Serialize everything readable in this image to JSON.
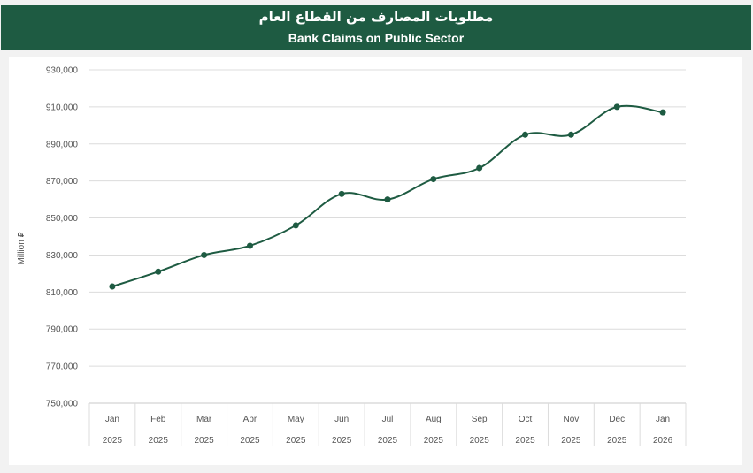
{
  "header": {
    "title_ar": "مطلوبات المصارف من القطاع العام",
    "title_en": "Bank Claims on Public Sector"
  },
  "colors": {
    "header_bg": "#1e5b42",
    "line": "#1e5b42",
    "point": "#1e5b42",
    "grid": "#dcdcdc",
    "background": "#f2f2f2"
  },
  "chart_data": {
    "type": "line",
    "title": "Bank Claims on Public Sector",
    "ylabel": "Million ⃁",
    "ylim": [
      750000,
      930000
    ],
    "yticks": [
      750000,
      770000,
      790000,
      810000,
      830000,
      850000,
      870000,
      890000,
      910000,
      930000
    ],
    "ytick_labels": [
      "750,000",
      "770,000",
      "790,000",
      "810,000",
      "830,000",
      "850,000",
      "870,000",
      "890,000",
      "910,000",
      "930,000"
    ],
    "categories": [
      {
        "month": "Jan",
        "year": "2025"
      },
      {
        "month": "Feb",
        "year": "2025"
      },
      {
        "month": "Mar",
        "year": "2025"
      },
      {
        "month": "Apr",
        "year": "2025"
      },
      {
        "month": "May",
        "year": "2025"
      },
      {
        "month": "Jun",
        "year": "2025"
      },
      {
        "month": "Jul",
        "year": "2025"
      },
      {
        "month": "Aug",
        "year": "2025"
      },
      {
        "month": "Sep",
        "year": "2025"
      },
      {
        "month": "Oct",
        "year": "2025"
      },
      {
        "month": "Nov",
        "year": "2025"
      },
      {
        "month": "Dec",
        "year": "2025"
      },
      {
        "month": "Jan",
        "year": "2026"
      }
    ],
    "values": [
      813000,
      821000,
      830000,
      835000,
      846000,
      863000,
      860000,
      871000,
      877000,
      895000,
      895000,
      910000,
      907000
    ],
    "grid": true,
    "legend": "none"
  }
}
